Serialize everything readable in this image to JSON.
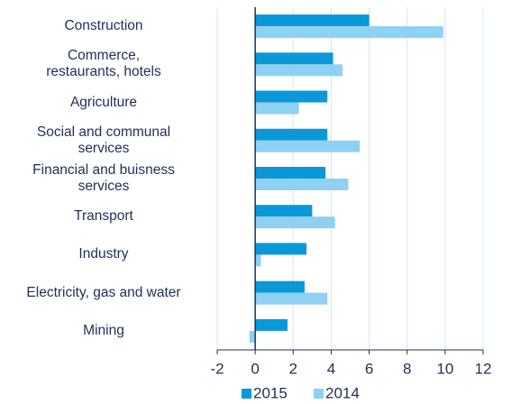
{
  "chart_data": {
    "type": "barh",
    "categories": [
      "Construction",
      "Commerce,\nrestaurants, hotels",
      "Agriculture",
      "Social and communal\nservices",
      "Financial and buisness\nservices",
      "Transport",
      "Industry",
      "Electricity, gas and water",
      "Mining"
    ],
    "series": [
      {
        "name": "2015",
        "color": "#0a98d8",
        "values": [
          6.0,
          4.1,
          3.8,
          3.8,
          3.7,
          3.0,
          2.7,
          2.6,
          1.7
        ]
      },
      {
        "name": "2014",
        "color": "#8ed1f2",
        "values": [
          9.9,
          4.6,
          2.3,
          5.5,
          4.9,
          4.2,
          0.3,
          3.8,
          -0.3
        ]
      }
    ],
    "xlim": [
      -2,
      12
    ],
    "xticks": [
      -2,
      0,
      2,
      4,
      6,
      8,
      10,
      12
    ],
    "grid": true,
    "legend": "bottom"
  }
}
